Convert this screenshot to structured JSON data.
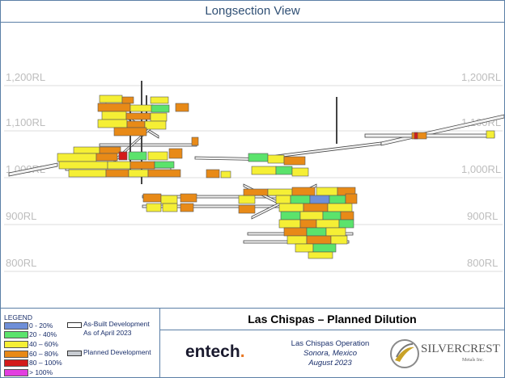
{
  "header": {
    "title": "Longsection View"
  },
  "elevation_labels": [
    "1,200RL",
    "1,100RL",
    "1,000RL",
    "900RL",
    "800RL"
  ],
  "legend": {
    "title": "LEGEND",
    "items": [
      {
        "label": "0 - 20%",
        "color": "#6f8fd8"
      },
      {
        "label": "20 - 40%",
        "color": "#5be36c"
      },
      {
        "label": "40 – 60%",
        "color": "#f5ef35"
      },
      {
        "label": "60 – 80%",
        "color": "#e88a17"
      },
      {
        "label": "80 – 100%",
        "color": "#d31b1b"
      },
      {
        "label": "> 100%",
        "color": "#e23fe0"
      }
    ],
    "as_built": {
      "line1": "As-Built Development",
      "line2": "As of April 2023"
    },
    "planned": {
      "label": "Planned Development"
    }
  },
  "footer": {
    "main_title": "Las Chispas – Planned Dilution",
    "entech": {
      "name": "entech",
      "dot": "."
    },
    "operation": {
      "name": "Las Chispas Operation",
      "location": "Sonora, Mexico",
      "date": "August 2023"
    },
    "company": {
      "name": "SILVERCREST",
      "subtitle": "Metals Inc."
    }
  }
}
